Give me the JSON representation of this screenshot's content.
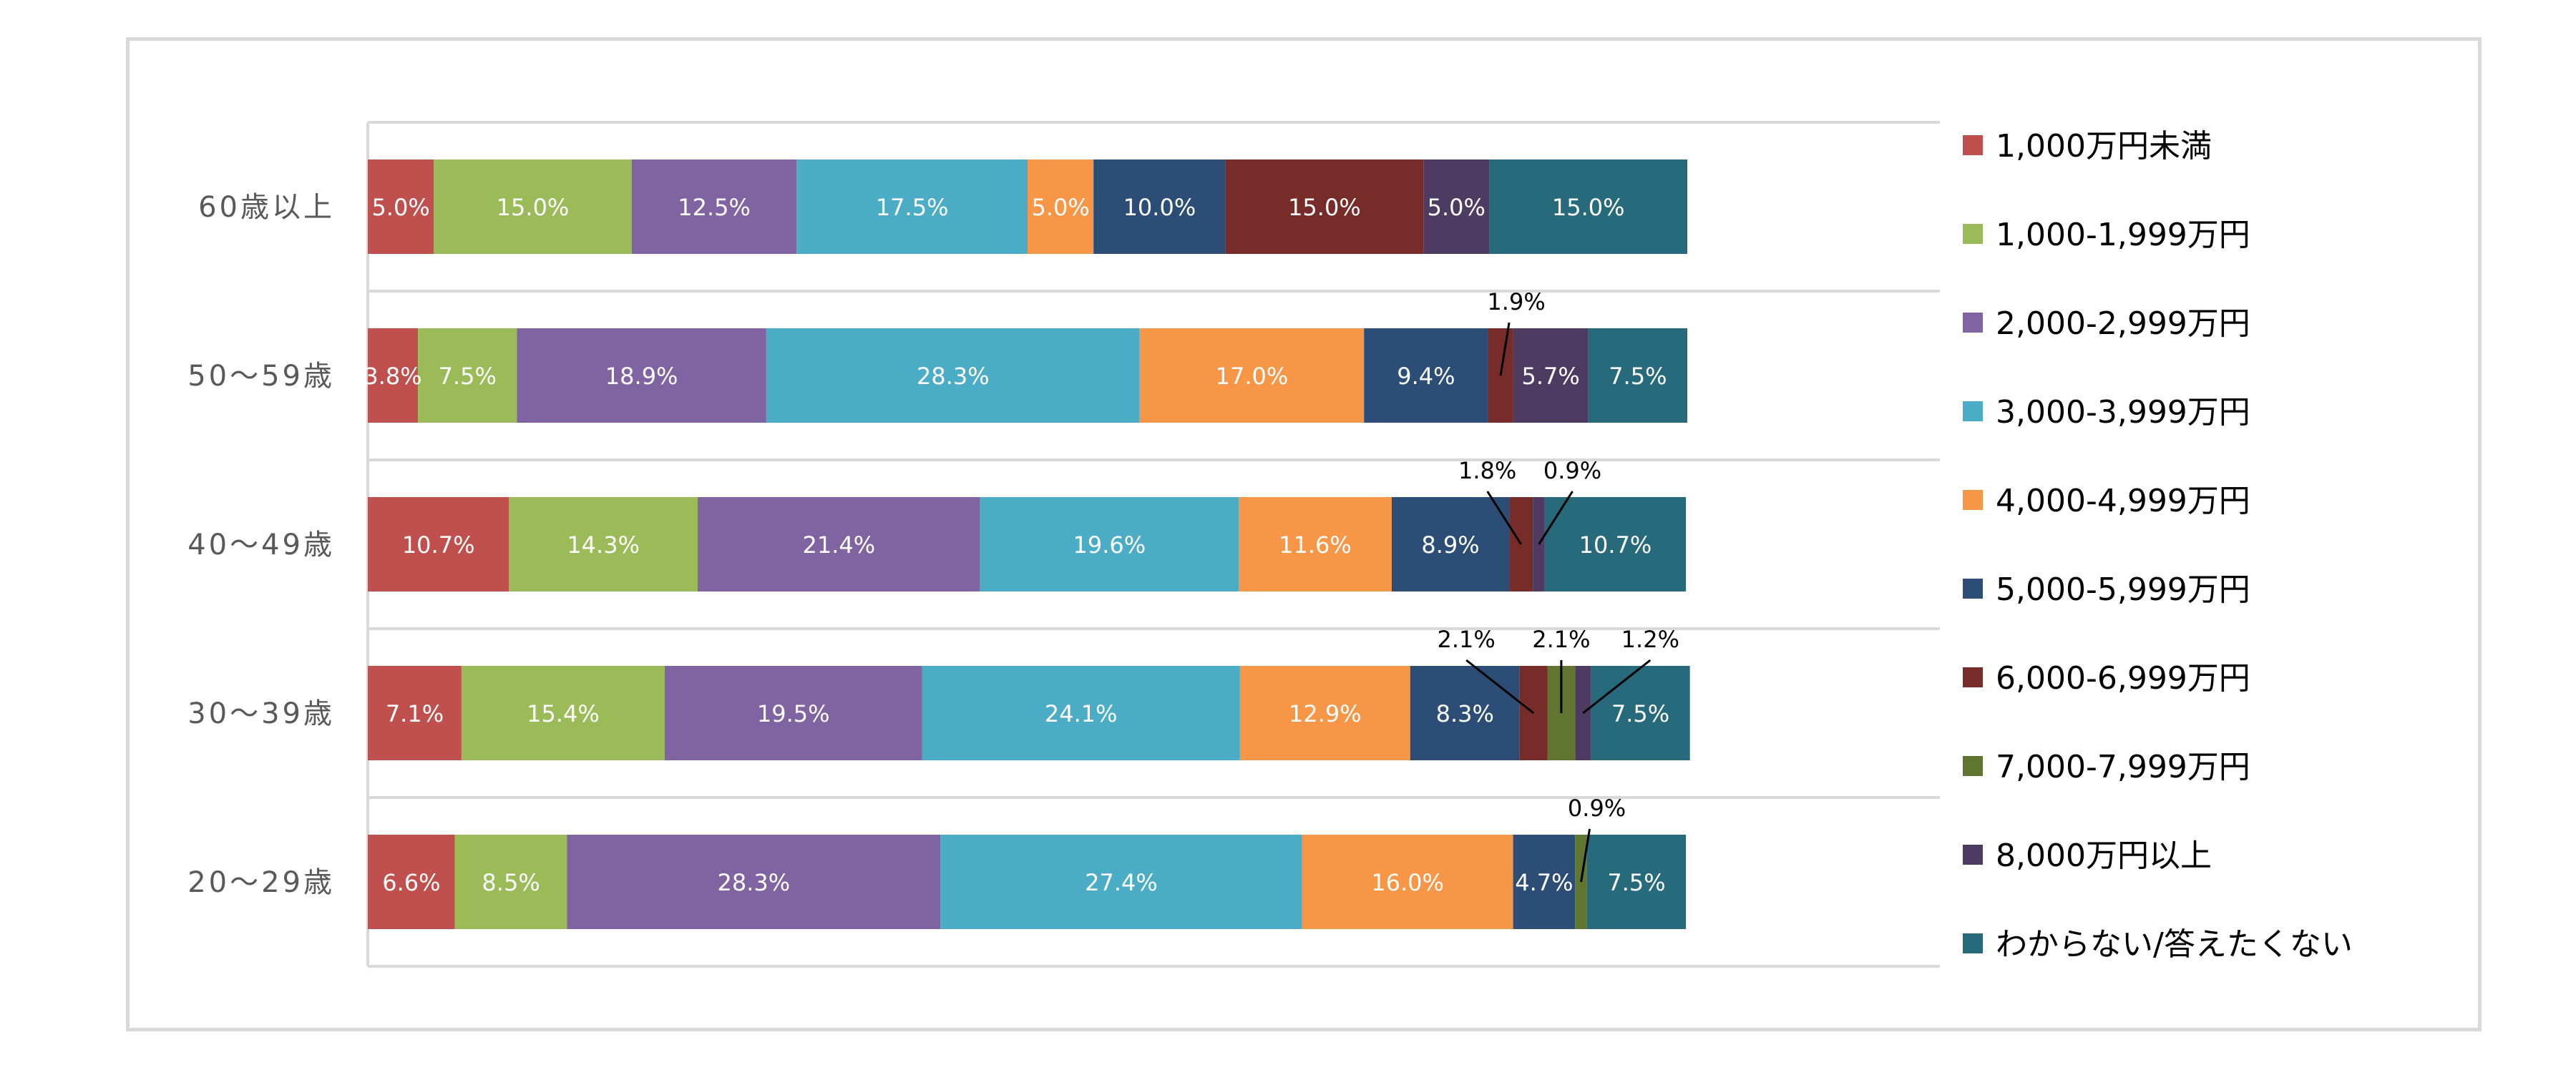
{
  "chart_data": {
    "type": "bar",
    "orientation": "horizontal",
    "stacked": "percent",
    "categories": [
      "60歳以上",
      "50～59歳",
      "40～49歳",
      "30～39歳",
      "20～29歳"
    ],
    "series": [
      {
        "name": "1,000万円未満",
        "color": "#c0504d",
        "values": [
          5.0,
          3.8,
          10.7,
          7.1,
          6.6
        ]
      },
      {
        "name": "1,000-1,999万円",
        "color": "#9bbb59",
        "values": [
          15.0,
          7.5,
          14.3,
          15.4,
          8.5
        ]
      },
      {
        "name": "2,000-2,999万円",
        "color": "#8064a2",
        "values": [
          12.5,
          18.9,
          21.4,
          19.5,
          28.3
        ]
      },
      {
        "name": "3,000-3,999万円",
        "color": "#4bacc6",
        "values": [
          17.5,
          28.3,
          19.6,
          24.1,
          27.4
        ]
      },
      {
        "name": "4,000-4,999万円",
        "color": "#f79646",
        "values": [
          5.0,
          17.0,
          11.6,
          12.9,
          16.0
        ]
      },
      {
        "name": "5,000-5,999万円",
        "color": "#2c4d75",
        "values": [
          10.0,
          9.4,
          8.9,
          8.3,
          4.7
        ]
      },
      {
        "name": "6,000-6,999万円",
        "color": "#772c2a",
        "values": [
          15.0,
          1.9,
          1.8,
          2.1,
          0
        ]
      },
      {
        "name": "7,000-7,999万円",
        "color": "#5f7530",
        "values": [
          0,
          0,
          0,
          2.1,
          0.9
        ]
      },
      {
        "name": "8,000万円以上",
        "color": "#4d3b62",
        "values": [
          5.0,
          5.7,
          0.9,
          1.2,
          0
        ]
      },
      {
        "name": "わからない/答えたくない",
        "color": "#276a7c",
        "values": [
          15.0,
          7.5,
          10.7,
          7.5,
          7.5
        ]
      }
    ],
    "legend_position": "right",
    "grid": "horizontal separators",
    "xlim": [
      0,
      100
    ],
    "value_format": "0.0%"
  }
}
